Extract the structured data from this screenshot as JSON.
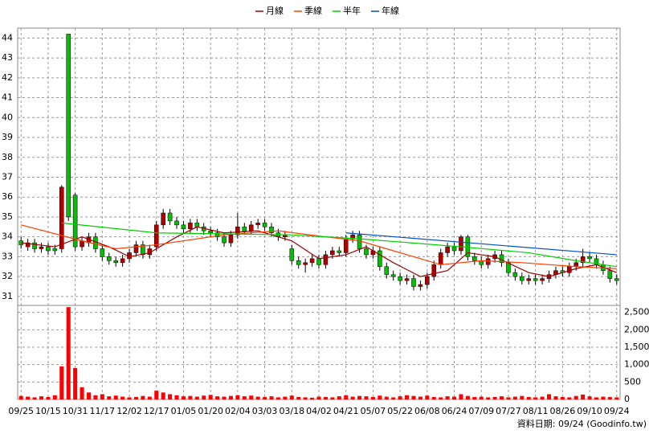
{
  "chart_data": {
    "type": "candlestick",
    "xlim": [
      -0.5,
      88.5
    ],
    "xticks": [
      {
        "value": 0,
        "label": "09/25"
      },
      {
        "value": 4,
        "label": "10/15"
      },
      {
        "value": 8,
        "label": "10/31"
      },
      {
        "value": 12,
        "label": "11/17"
      },
      {
        "value": 16,
        "label": "12/02"
      },
      {
        "value": 20,
        "label": "12/17"
      },
      {
        "value": 24,
        "label": "01/05"
      },
      {
        "value": 28,
        "label": "01/20"
      },
      {
        "value": 32,
        "label": "02/04"
      },
      {
        "value": 36,
        "label": "03/03"
      },
      {
        "value": 40,
        "label": "03/18"
      },
      {
        "value": 44,
        "label": "04/02"
      },
      {
        "value": 48,
        "label": "04/21"
      },
      {
        "value": 52,
        "label": "05/07"
      },
      {
        "value": 56,
        "label": "05/22"
      },
      {
        "value": 60,
        "label": "06/08"
      },
      {
        "value": 64,
        "label": "06/24"
      },
      {
        "value": 68,
        "label": "07/09"
      },
      {
        "value": 72,
        "label": "07/27"
      },
      {
        "value": 76,
        "label": "08/11"
      },
      {
        "value": 80,
        "label": "08/26"
      },
      {
        "value": 84,
        "label": "09/10"
      },
      {
        "value": 88,
        "label": "09/24"
      }
    ],
    "ylim": [
      30.55,
      44.5
    ],
    "yticks": [
      31,
      32,
      33,
      34,
      35,
      36,
      37,
      38,
      39,
      40,
      41,
      42,
      43,
      44
    ],
    "open": [
      33.8,
      33.5,
      33.7,
      33.4,
      33.5,
      33.4,
      33.4,
      44.2,
      36.1,
      33.5,
      33.7,
      34.0,
      33.4,
      33.0,
      32.8,
      32.7,
      32.9,
      33.2,
      33.6,
      33.1,
      33.5,
      34.6,
      35.2,
      34.8,
      34.6,
      34.4,
      34.7,
      34.5,
      34.3,
      34.2,
      34.0,
      33.7,
      34.1,
      34.5,
      34.3,
      34.6,
      34.7,
      34.5,
      34.2,
      34.0,
      33.4,
      32.8,
      32.6,
      32.7,
      32.9,
      32.6,
      33.1,
      33.3,
      33.2,
      33.9,
      34.1,
      33.4,
      33.1,
      33.3,
      32.5,
      32.1,
      32.0,
      31.8,
      31.9,
      31.5,
      31.6,
      32.0,
      32.6,
      33.2,
      33.5,
      33.3,
      34.0,
      33.0,
      32.8,
      32.6,
      32.9,
      33.1,
      32.7,
      32.2,
      32.0,
      31.8,
      31.9,
      31.8,
      31.9,
      32.1,
      32.3,
      32.2,
      32.5,
      32.7,
      33.0,
      32.9,
      32.6,
      32.3,
      31.9
    ],
    "high": [
      34.0,
      33.9,
      33.9,
      33.7,
      33.7,
      33.6,
      36.6,
      44.2,
      36.2,
      34.0,
      34.2,
      34.2,
      33.6,
      33.2,
      33.0,
      33.1,
      33.4,
      33.8,
      33.8,
      33.6,
      34.8,
      35.4,
      35.4,
      35.0,
      34.8,
      34.9,
      34.9,
      34.7,
      34.5,
      34.4,
      34.2,
      34.3,
      35.2,
      34.7,
      34.8,
      34.9,
      34.9,
      34.7,
      34.4,
      34.3,
      33.6,
      33.0,
      32.9,
      33.1,
      33.1,
      33.3,
      33.5,
      33.5,
      34.1,
      34.3,
      34.3,
      33.6,
      33.5,
      33.5,
      32.7,
      32.3,
      32.2,
      32.1,
      32.1,
      31.8,
      32.2,
      32.8,
      33.4,
      33.7,
      33.7,
      34.1,
      34.1,
      33.2,
      33.0,
      33.1,
      33.3,
      33.3,
      32.9,
      32.4,
      32.2,
      32.1,
      32.1,
      32.1,
      32.3,
      32.5,
      32.5,
      32.7,
      32.9,
      33.4,
      33.2,
      33.1,
      32.8,
      32.5,
      32.1
    ],
    "low": [
      33.4,
      33.3,
      33.2,
      33.2,
      33.1,
      33.1,
      33.2,
      34.8,
      33.3,
      33.3,
      33.5,
      33.2,
      32.8,
      32.6,
      32.5,
      32.5,
      32.7,
      33.0,
      32.9,
      32.9,
      33.3,
      34.4,
      34.6,
      34.4,
      34.2,
      34.2,
      34.3,
      34.1,
      34.0,
      33.8,
      33.5,
      33.5,
      33.9,
      34.1,
      34.1,
      34.4,
      34.3,
      34.0,
      33.8,
      33.8,
      32.6,
      32.4,
      32.2,
      32.5,
      32.4,
      32.4,
      32.9,
      33.0,
      33.0,
      33.7,
      33.2,
      32.9,
      32.9,
      32.3,
      31.9,
      31.8,
      31.6,
      31.6,
      31.3,
      31.3,
      31.4,
      31.8,
      32.4,
      33.0,
      33.1,
      33.1,
      32.8,
      32.6,
      32.4,
      32.4,
      32.7,
      32.5,
      32.0,
      31.8,
      31.6,
      31.6,
      31.6,
      31.6,
      31.7,
      31.9,
      32.0,
      32.0,
      32.3,
      32.5,
      32.7,
      32.4,
      32.1,
      31.7,
      31.6
    ],
    "close": [
      33.6,
      33.7,
      33.4,
      33.5,
      33.3,
      33.3,
      36.5,
      35.0,
      33.5,
      33.8,
      34.0,
      33.4,
      33.0,
      32.8,
      32.7,
      32.9,
      33.2,
      33.6,
      33.1,
      33.4,
      34.6,
      35.2,
      34.8,
      34.6,
      34.4,
      34.7,
      34.5,
      34.3,
      34.2,
      34.0,
      33.7,
      34.1,
      34.5,
      34.3,
      34.6,
      34.7,
      34.5,
      34.2,
      34.0,
      34.1,
      32.8,
      32.6,
      32.7,
      32.9,
      32.6,
      33.1,
      33.3,
      33.2,
      33.9,
      34.1,
      33.4,
      33.1,
      33.3,
      32.5,
      32.1,
      32.0,
      31.8,
      31.9,
      31.5,
      31.6,
      32.0,
      32.6,
      33.2,
      33.5,
      33.3,
      34.0,
      33.0,
      32.8,
      32.6,
      32.9,
      33.1,
      32.7,
      32.2,
      32.0,
      31.8,
      31.9,
      31.8,
      31.9,
      32.1,
      32.3,
      32.2,
      32.5,
      32.7,
      33.0,
      32.9,
      32.6,
      32.3,
      31.9,
      31.8
    ],
    "up_color": "#b00000",
    "down_color": "#00c000",
    "series": [
      {
        "name": "月線",
        "color": "#a00000",
        "x": [
          0,
          5,
          9,
          13,
          16,
          19,
          23,
          26,
          30,
          35,
          40,
          44,
          48,
          51,
          55,
          59,
          63,
          66,
          70,
          75,
          78,
          82,
          85,
          88
        ],
        "values": [
          33.7,
          33.5,
          34.0,
          33.5,
          33.0,
          33.2,
          34.0,
          34.5,
          34.2,
          34.3,
          33.8,
          32.9,
          33.1,
          33.5,
          32.7,
          32.0,
          32.3,
          33.2,
          33.0,
          32.2,
          32.0,
          32.4,
          32.6,
          32.2
        ]
      },
      {
        "name": "季線",
        "color": "#ff4000",
        "x": [
          0,
          9,
          14,
          20,
          30,
          38,
          45,
          50,
          55,
          62,
          68,
          74,
          82,
          88
        ],
        "values": [
          34.6,
          33.8,
          33.4,
          33.6,
          34.1,
          34.3,
          34.0,
          33.8,
          33.3,
          32.6,
          32.8,
          32.7,
          32.5,
          32.4
        ]
      },
      {
        "name": "半年",
        "color": "#00d000",
        "x": [
          6,
          20,
          40,
          50,
          65,
          75,
          82,
          88
        ],
        "values": [
          34.7,
          34.2,
          34.1,
          33.9,
          33.5,
          33.2,
          32.8,
          32.5
        ]
      },
      {
        "name": "年線",
        "color": "#0050d0",
        "x": [
          48,
          88
        ],
        "values": [
          34.2,
          33.1
        ]
      }
    ],
    "volume": {
      "type": "bar",
      "color": "#ff0000",
      "values": [
        100,
        80,
        60,
        90,
        70,
        120,
        950,
        2650,
        900,
        350,
        200,
        120,
        150,
        90,
        110,
        80,
        60,
        70,
        100,
        80,
        250,
        200,
        150,
        120,
        90,
        100,
        80,
        110,
        130,
        90,
        80,
        100,
        120,
        90,
        110,
        80,
        70,
        90,
        60,
        80,
        110,
        70,
        60,
        50,
        80,
        70,
        60,
        90,
        120,
        80,
        100,
        90,
        70,
        110,
        80,
        60,
        90,
        120,
        100,
        80,
        110,
        70,
        60,
        90,
        80,
        150,
        100,
        70,
        80,
        60,
        70,
        90,
        60,
        80,
        100,
        70,
        60,
        80,
        150,
        90,
        70,
        60,
        100,
        140,
        90,
        60,
        80,
        70,
        60
      ],
      "ylim": [
        0,
        2700
      ],
      "yticks": [
        0,
        500,
        {
          "value": 1000,
          "label": "1,000"
        },
        {
          "value": 1500,
          "label": "1,500"
        },
        {
          "value": 2000,
          "label": "2,000"
        },
        {
          "value": 2500,
          "label": "2,500"
        }
      ]
    },
    "grid": true,
    "legend": "top",
    "footnote": "資料日期: 09/24 (Goodinfo.tw)"
  }
}
